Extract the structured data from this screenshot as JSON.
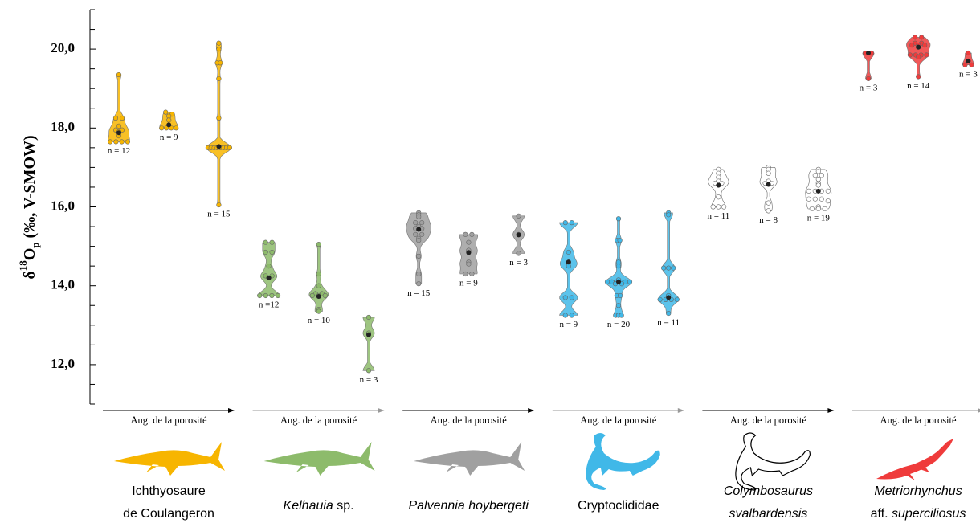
{
  "chart_data": {
    "type": "violin",
    "ylabel": [
      {
        "text": "δ"
      },
      {
        "text": "18",
        "shift": "super"
      },
      {
        "text": "O"
      },
      {
        "text": "p",
        "shift": "sub"
      },
      {
        "text": " (‰, V-SMOW)"
      }
    ],
    "ylim": [
      11,
      21
    ],
    "yticks": [
      {
        "value": 12,
        "label": "12,0"
      },
      {
        "value": 14,
        "label": "14,0"
      },
      {
        "value": 16,
        "label": "16,0"
      },
      {
        "value": 18,
        "label": "18,0"
      },
      {
        "value": 20,
        "label": "20,0"
      }
    ],
    "minor_yticks": [
      11,
      11.5,
      12.5,
      13,
      13.5,
      14.5,
      15,
      15.5,
      16.5,
      17,
      17.5,
      18.5,
      19,
      19.5,
      20.5,
      21
    ],
    "groups": [
      {
        "label": [
          [
            {
              "text": "Ichthyosaure"
            }
          ],
          [
            {
              "text": "de Coulangeron"
            }
          ]
        ],
        "color": "#f7b500",
        "arrow_text": "Aug. de la porosité",
        "arrow_color": "#000000",
        "shape": "ichthyosaur",
        "violins": [
          {
            "n_label": "n = 12",
            "mean": 17.88,
            "points": [
              19.35,
              18.25,
              18.25,
              17.95,
              17.95,
              17.8,
              17.65,
              17.65,
              17.65,
              17.65,
              18.05,
              17.9
            ]
          },
          {
            "n_label": "n = 9",
            "mean": 18.08,
            "points": [
              18.4,
              18.35,
              18.3,
              18.2,
              18.05,
              18.0,
              18.0,
              18.0,
              18.0
            ]
          },
          {
            "n_label": "n = 15",
            "mean": 17.53,
            "points": [
              20.15,
              20.0,
              19.65,
              19.65,
              19.25,
              18.25,
              17.5,
              17.5,
              17.5,
              17.5,
              17.5,
              17.5,
              17.5,
              17.5,
              16.05
            ]
          }
        ]
      },
      {
        "label": [
          [
            {
              "text": "Kelhauia",
              "italic": true
            },
            {
              "text": " sp."
            }
          ]
        ],
        "color": "#8dbb6b",
        "arrow_text": "Aug. de la porosité",
        "arrow_color": "#999999",
        "shape": "ichthyosaur",
        "violins": [
          {
            "n_label": "n =12",
            "mean": 14.2,
            "points": [
              15.1,
              15.1,
              14.85,
              14.85,
              14.25,
              14.25,
              14.2,
              13.75,
              13.75,
              13.75,
              13.75,
              14.5
            ]
          },
          {
            "n_label": "n = 10",
            "mean": 13.73,
            "points": [
              15.05,
              14.3,
              14.0,
              13.8,
              13.8,
              13.75,
              13.75,
              13.75,
              13.4,
              13.35
            ]
          },
          {
            "n_label": "n = 3",
            "mean": 12.76,
            "points": [
              13.2,
              12.8,
              11.85
            ]
          }
        ]
      },
      {
        "label": [
          [
            {
              "text": "Palvennia hoybergeti",
              "italic": true
            }
          ]
        ],
        "color": "#a0a0a0",
        "arrow_text": "Aug. de la porosité",
        "arrow_color": "#000000",
        "shape": "ichthyosaur",
        "violins": [
          {
            "n_label": "n = 15",
            "mean": 15.43,
            "points": [
              15.85,
              15.8,
              15.75,
              15.6,
              15.6,
              15.5,
              15.45,
              15.45,
              15.3,
              15.3,
              15.2,
              15.15,
              14.75,
              14.3,
              14.05
            ]
          },
          {
            "n_label": "n = 9",
            "mean": 14.84,
            "points": [
              15.3,
              15.3,
              15.1,
              14.9,
              14.85,
              14.6,
              14.55,
              14.3,
              14.3
            ]
          },
          {
            "n_label": "n = 3",
            "mean": 15.29,
            "points": [
              15.77,
              15.3,
              14.82
            ]
          }
        ]
      },
      {
        "label": [
          [
            {
              "text": "Cryptoclididae"
            }
          ]
        ],
        "color": "#40b8e8",
        "arrow_text": "Aug. de la porosité",
        "arrow_color": "#999999",
        "shape": "plesiosaur",
        "violins": [
          {
            "n_label": "n = 9",
            "mean": 14.6,
            "points": [
              15.6,
              15.6,
              14.85,
              14.6,
              14.5,
              13.7,
              13.7,
              13.25,
              13.25
            ]
          },
          {
            "n_label": "n = 20",
            "mean": 14.1,
            "points": [
              15.7,
              15.15,
              15.15,
              14.6,
              14.5,
              14.15,
              14.1,
              14.1,
              14.1,
              14.1,
              14.1,
              14.1,
              14.05,
              14.05,
              13.75,
              13.75,
              13.5,
              13.25,
              13.25,
              13.25
            ]
          },
          {
            "n_label": "n = 11",
            "mean": 13.7,
            "points": [
              15.85,
              15.8,
              14.45,
              14.45,
              14.45,
              13.75,
              13.65,
              13.65,
              13.65,
              13.65,
              13.3
            ]
          }
        ]
      },
      {
        "label": [
          [
            {
              "text": "Colymbosaurus",
              "italic": true
            }
          ],
          [
            {
              "text": "svalbardensis",
              "italic": true
            }
          ]
        ],
        "color": "#ffffff",
        "arrow_text": "Aug. de la porosité",
        "arrow_color": "#000000",
        "shape": "plesiosaur",
        "violins": [
          {
            "n_label": "n = 11",
            "mean": 16.55,
            "points": [
              16.95,
              16.85,
              16.75,
              16.65,
              16.6,
              16.6,
              16.55,
              16.25,
              16.0,
              16.0,
              16.0
            ]
          },
          {
            "n_label": "n = 8",
            "mean": 16.57,
            "points": [
              17.0,
              16.95,
              16.85,
              16.65,
              16.6,
              16.6,
              16.1,
              15.9
            ]
          },
          {
            "n_label": "n = 19",
            "mean": 16.4,
            "points": [
              16.95,
              16.9,
              16.8,
              16.8,
              16.7,
              16.6,
              16.55,
              16.4,
              16.4,
              16.4,
              16.4,
              16.2,
              16.2,
              16.2,
              16.15,
              16.0,
              15.95,
              15.95,
              15.95
            ]
          }
        ]
      },
      {
        "label": [
          [
            {
              "text": "Metriorhynchus",
              "italic": true
            }
          ],
          [
            {
              "text": "aff. "
            },
            {
              "text": "superciliosus",
              "italic": true
            }
          ]
        ],
        "color": "#ef3b3b",
        "arrow_text": "Aug. de la porosité",
        "arrow_color": "#999999",
        "shape": "crocodile",
        "violins": [
          {
            "n_label": "n = 3",
            "mean": 19.9,
            "points": [
              19.9,
              19.9,
              19.25
            ]
          },
          {
            "n_label": "n = 14",
            "mean": 20.05,
            "points": [
              20.3,
              20.3,
              20.15,
              20.15,
              20.1,
              20.1,
              20.1,
              20.05,
              19.85,
              19.85,
              19.85,
              19.85,
              19.8,
              19.3
            ]
          },
          {
            "n_label": "n = 3",
            "mean": 19.7,
            "points": [
              19.9,
              19.6,
              19.6
            ]
          }
        ]
      }
    ]
  }
}
